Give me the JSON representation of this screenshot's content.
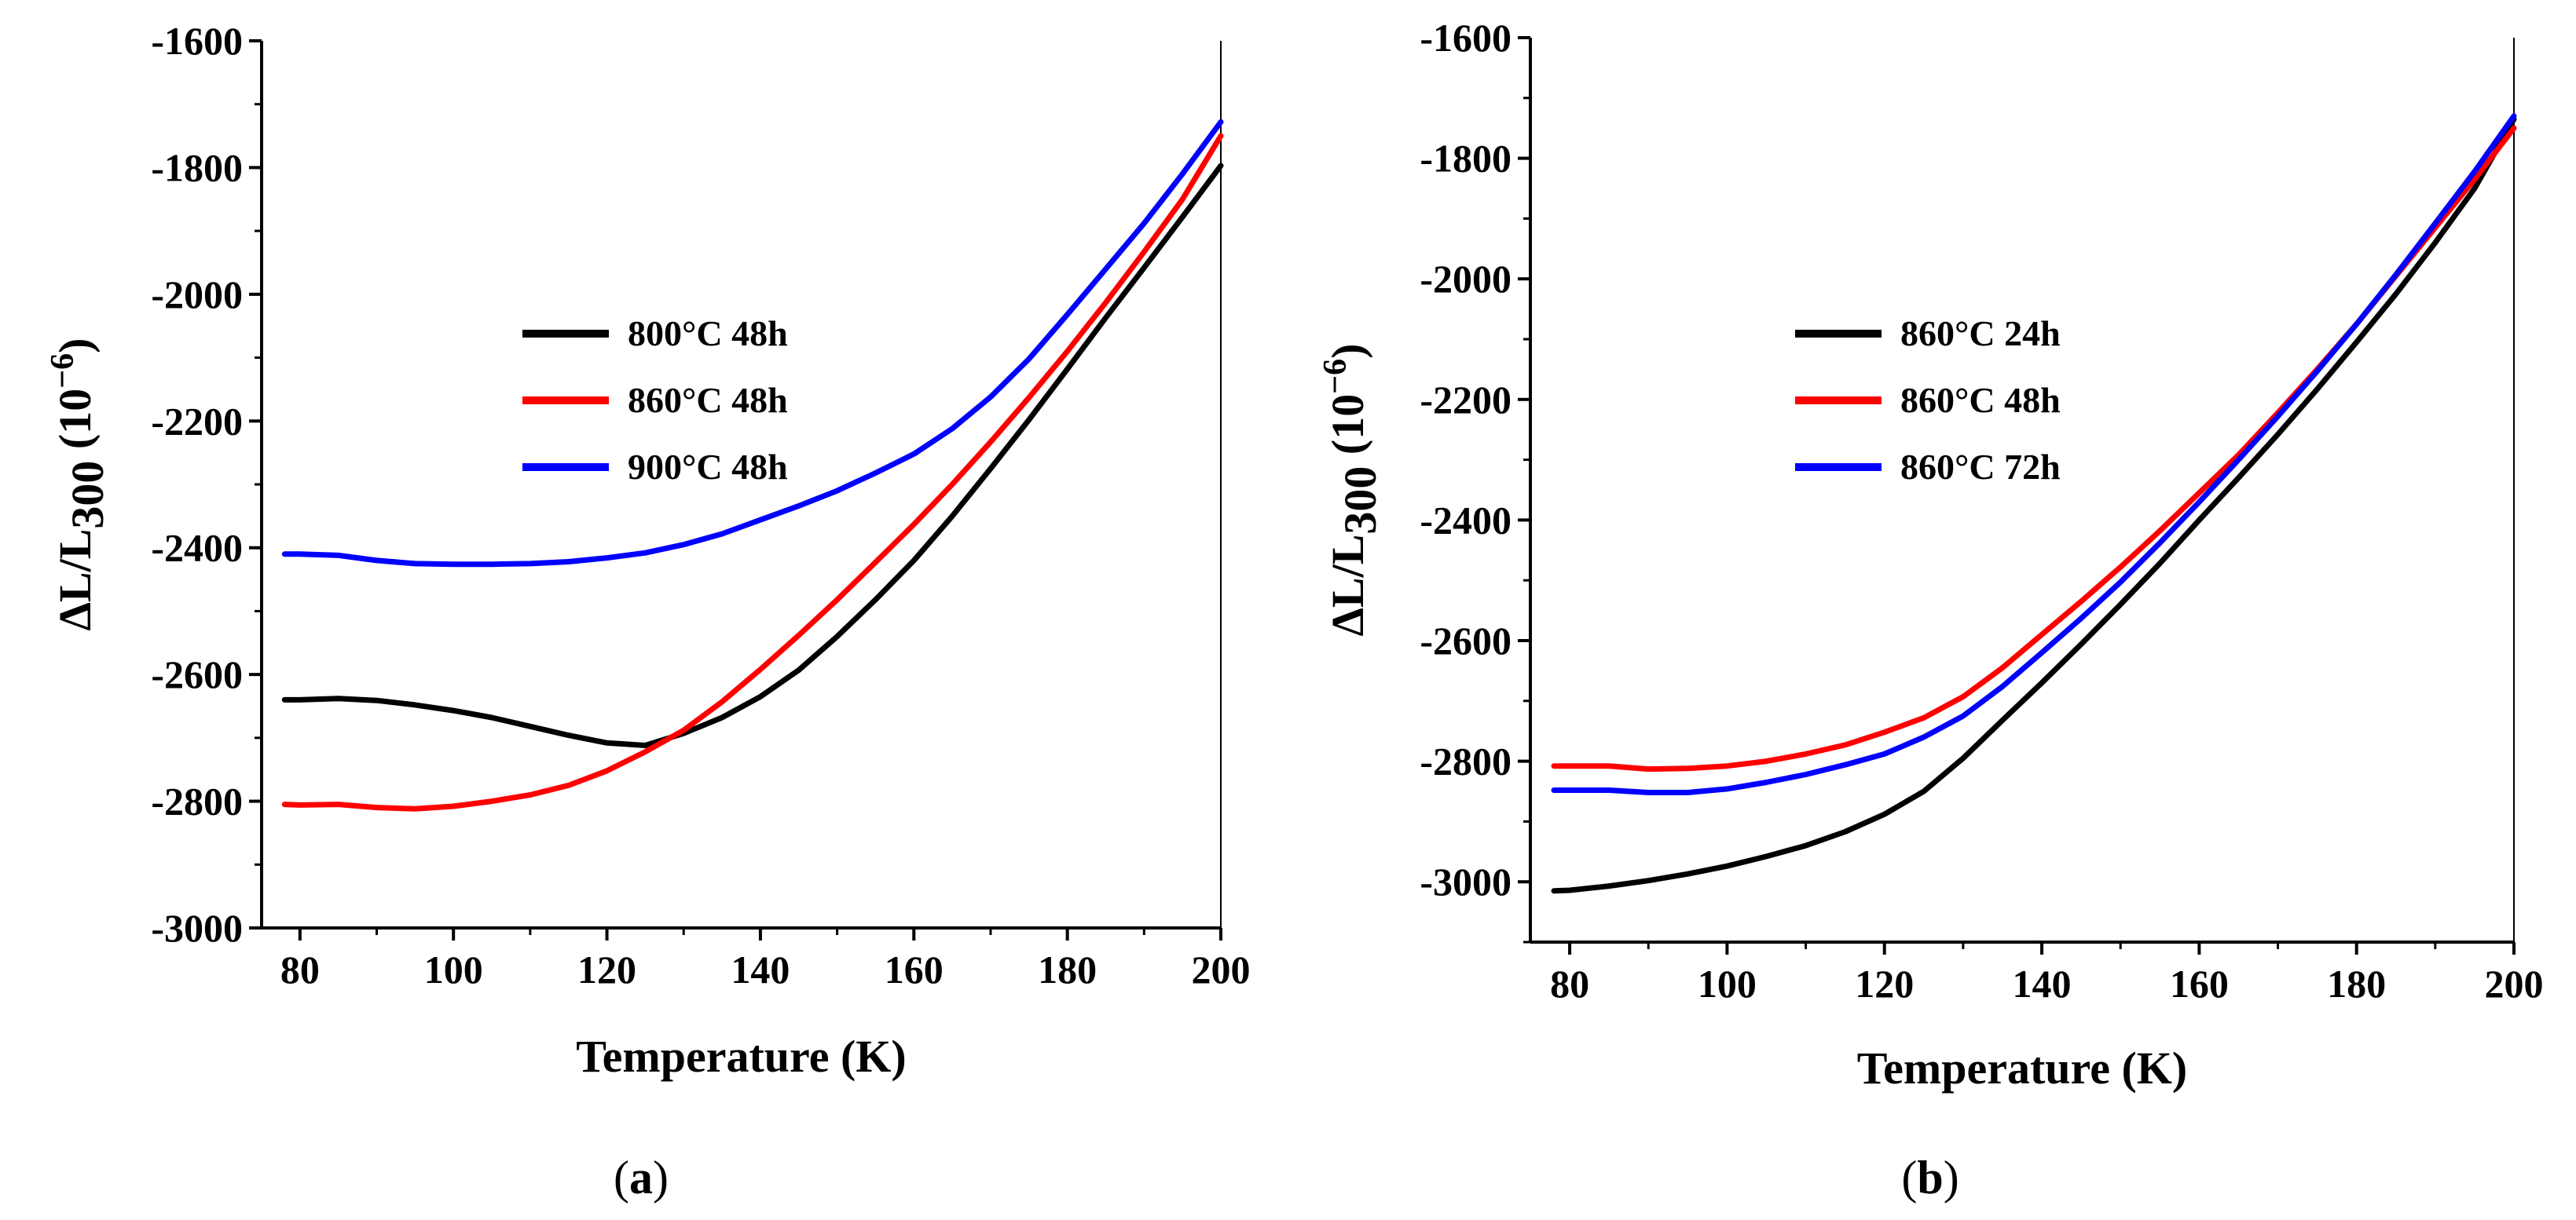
{
  "chart_data": [
    {
      "type": "line",
      "panel_label": "a",
      "xlabel": "Temperature (K)",
      "ylabel": "ΔL/L",
      "ylabel_sub": "300",
      "ylabel_unit": " (10",
      "ylabel_exp": "−6",
      "ylabel_close": ")",
      "xlim": [
        75,
        200
      ],
      "ylim": [
        -3000,
        -1600
      ],
      "xticks": [
        80,
        100,
        120,
        140,
        160,
        180,
        200
      ],
      "yticks": [
        -1600,
        -1800,
        -2000,
        -2200,
        -2400,
        -2600,
        -2800,
        -3000
      ],
      "xtick_labels": [
        "80",
        "100",
        "120",
        "140",
        "160",
        "180",
        "200"
      ],
      "ytick_labels": [
        "-1600",
        "-1800",
        "-2000",
        "-2200",
        "-2400",
        "-2600",
        "-2800",
        "-3000"
      ],
      "legend_position": "center",
      "series": [
        {
          "name": "800°C 48h",
          "color": "#000000",
          "points": [
            [
              78,
              -2640
            ],
            [
              80,
              -2640
            ],
            [
              85,
              -2638
            ],
            [
              90,
              -2641
            ],
            [
              95,
              -2648
            ],
            [
              100,
              -2657
            ],
            [
              105,
              -2668
            ],
            [
              110,
              -2682
            ],
            [
              115,
              -2696
            ],
            [
              120,
              -2708
            ],
            [
              125,
              -2712
            ],
            [
              130,
              -2693
            ],
            [
              135,
              -2668
            ],
            [
              140,
              -2635
            ],
            [
              145,
              -2593
            ],
            [
              150,
              -2540
            ],
            [
              155,
              -2482
            ],
            [
              160,
              -2420
            ],
            [
              165,
              -2350
            ],
            [
              170,
              -2275
            ],
            [
              175,
              -2198
            ],
            [
              180,
              -2118
            ],
            [
              185,
              -2037
            ],
            [
              190,
              -1958
            ],
            [
              195,
              -1878
            ],
            [
              200,
              -1797
            ]
          ]
        },
        {
          "name": "860°C 48h",
          "color": "#ff0000",
          "points": [
            [
              78,
              -2805
            ],
            [
              80,
              -2806
            ],
            [
              85,
              -2805
            ],
            [
              90,
              -2810
            ],
            [
              95,
              -2812
            ],
            [
              100,
              -2808
            ],
            [
              105,
              -2800
            ],
            [
              110,
              -2790
            ],
            [
              115,
              -2775
            ],
            [
              120,
              -2752
            ],
            [
              125,
              -2722
            ],
            [
              130,
              -2688
            ],
            [
              135,
              -2643
            ],
            [
              140,
              -2592
            ],
            [
              145,
              -2538
            ],
            [
              150,
              -2482
            ],
            [
              155,
              -2423
            ],
            [
              160,
              -2363
            ],
            [
              165,
              -2300
            ],
            [
              170,
              -2233
            ],
            [
              175,
              -2163
            ],
            [
              180,
              -2090
            ],
            [
              185,
              -2013
            ],
            [
              190,
              -1933
            ],
            [
              195,
              -1850
            ],
            [
              200,
              -1750
            ]
          ]
        },
        {
          "name": "900°C 48h",
          "color": "#0000ff",
          "points": [
            [
              78,
              -2410
            ],
            [
              80,
              -2410
            ],
            [
              85,
              -2412
            ],
            [
              90,
              -2420
            ],
            [
              95,
              -2425
            ],
            [
              100,
              -2426
            ],
            [
              105,
              -2426
            ],
            [
              110,
              -2425
            ],
            [
              115,
              -2422
            ],
            [
              120,
              -2416
            ],
            [
              125,
              -2408
            ],
            [
              130,
              -2395
            ],
            [
              135,
              -2378
            ],
            [
              140,
              -2356
            ],
            [
              145,
              -2334
            ],
            [
              150,
              -2310
            ],
            [
              155,
              -2282
            ],
            [
              160,
              -2252
            ],
            [
              165,
              -2212
            ],
            [
              170,
              -2162
            ],
            [
              175,
              -2102
            ],
            [
              180,
              -2032
            ],
            [
              185,
              -1960
            ],
            [
              190,
              -1888
            ],
            [
              195,
              -1810
            ],
            [
              200,
              -1728
            ]
          ]
        }
      ]
    },
    {
      "type": "line",
      "panel_label": "b",
      "xlabel": "Temperature (K)",
      "ylabel": "ΔL/L",
      "ylabel_sub": "300",
      "ylabel_unit": " (10",
      "ylabel_exp": "−6",
      "ylabel_close": ")",
      "xlim": [
        75,
        200
      ],
      "ylim": [
        -3100,
        -1600
      ],
      "xticks": [
        80,
        100,
        120,
        140,
        160,
        180,
        200
      ],
      "yticks": [
        -1600,
        -1800,
        -2000,
        -2200,
        -2400,
        -2600,
        -2800,
        -3000
      ],
      "xtick_labels": [
        "80",
        "100",
        "120",
        "140",
        "160",
        "180",
        "200"
      ],
      "ytick_labels": [
        "-1600",
        "-1800",
        "-2000",
        "-2200",
        "-2400",
        "-2600",
        "-2800",
        "-3000"
      ],
      "legend_position": "center",
      "series": [
        {
          "name": "860°C 24h",
          "color": "#000000",
          "points": [
            [
              78,
              -3015
            ],
            [
              80,
              -3014
            ],
            [
              85,
              -3007
            ],
            [
              90,
              -2998
            ],
            [
              95,
              -2987
            ],
            [
              100,
              -2974
            ],
            [
              105,
              -2958
            ],
            [
              110,
              -2940
            ],
            [
              115,
              -2917
            ],
            [
              120,
              -2888
            ],
            [
              125,
              -2850
            ],
            [
              130,
              -2795
            ],
            [
              135,
              -2732
            ],
            [
              140,
              -2670
            ],
            [
              145,
              -2606
            ],
            [
              150,
              -2540
            ],
            [
              155,
              -2472
            ],
            [
              160,
              -2400
            ],
            [
              165,
              -2330
            ],
            [
              170,
              -2258
            ],
            [
              175,
              -2183
            ],
            [
              180,
              -2105
            ],
            [
              185,
              -2025
            ],
            [
              190,
              -1940
            ],
            [
              195,
              -1850
            ],
            [
              200,
              -1735
            ]
          ]
        },
        {
          "name": "860°C 48h",
          "color": "#ff0000",
          "points": [
            [
              78,
              -2808
            ],
            [
              80,
              -2808
            ],
            [
              85,
              -2808
            ],
            [
              90,
              -2813
            ],
            [
              95,
              -2812
            ],
            [
              100,
              -2808
            ],
            [
              105,
              -2800
            ],
            [
              110,
              -2788
            ],
            [
              115,
              -2773
            ],
            [
              120,
              -2752
            ],
            [
              125,
              -2728
            ],
            [
              130,
              -2693
            ],
            [
              135,
              -2645
            ],
            [
              140,
              -2590
            ],
            [
              145,
              -2535
            ],
            [
              150,
              -2478
            ],
            [
              155,
              -2418
            ],
            [
              160,
              -2355
            ],
            [
              165,
              -2292
            ],
            [
              170,
              -2222
            ],
            [
              175,
              -2150
            ],
            [
              180,
              -2075
            ],
            [
              185,
              -1995
            ],
            [
              190,
              -1915
            ],
            [
              195,
              -1835
            ],
            [
              200,
              -1750
            ]
          ]
        },
        {
          "name": "860°C 72h",
          "color": "#0000ff",
          "points": [
            [
              78,
              -2848
            ],
            [
              80,
              -2848
            ],
            [
              85,
              -2848
            ],
            [
              90,
              -2852
            ],
            [
              95,
              -2852
            ],
            [
              100,
              -2846
            ],
            [
              105,
              -2835
            ],
            [
              110,
              -2822
            ],
            [
              115,
              -2806
            ],
            [
              120,
              -2788
            ],
            [
              125,
              -2760
            ],
            [
              130,
              -2725
            ],
            [
              135,
              -2676
            ],
            [
              140,
              -2620
            ],
            [
              145,
              -2563
            ],
            [
              150,
              -2503
            ],
            [
              155,
              -2438
            ],
            [
              160,
              -2370
            ],
            [
              165,
              -2300
            ],
            [
              170,
              -2228
            ],
            [
              175,
              -2153
            ],
            [
              180,
              -2075
            ],
            [
              185,
              -1993
            ],
            [
              190,
              -1908
            ],
            [
              195,
              -1822
            ],
            [
              200,
              -1730
            ]
          ]
        }
      ]
    }
  ]
}
